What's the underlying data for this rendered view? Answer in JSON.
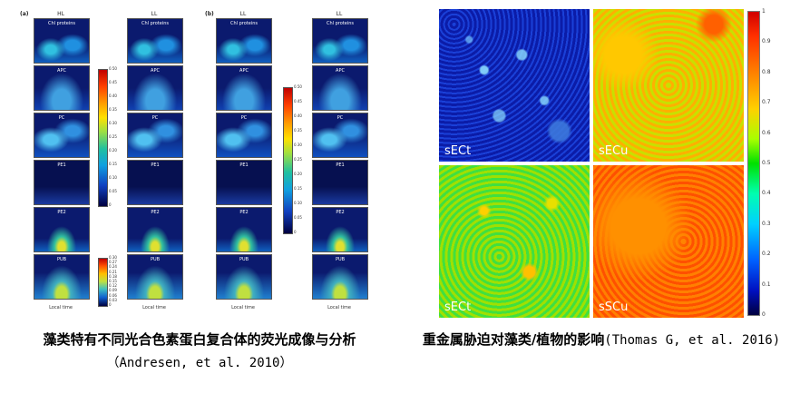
{
  "left_figure": {
    "panel_a_letter": "(a)",
    "panel_b_letter": "(b)",
    "column_titles": [
      "HL",
      "LL",
      "LL",
      "LL"
    ],
    "row_labels": [
      "Chl proteins",
      "APC",
      "PC",
      "PE1",
      "PE2",
      "PUB"
    ],
    "x_axis_label": "Local time",
    "colorbar1_ticks": [
      "0.50",
      "0.45",
      "0.40",
      "0.35",
      "0.30",
      "0.25",
      "0.20",
      "0.15",
      "0.10",
      "0.05",
      "0"
    ],
    "colorbar2_ticks": [
      "0.30",
      "0.27",
      "0.24",
      "0.21",
      "0.18",
      "0.15",
      "0.12",
      "0.09",
      "0.06",
      "0.03",
      "0"
    ],
    "colorbar3_ticks": [
      "0.50",
      "0.45",
      "0.40",
      "0.35",
      "0.30",
      "0.25",
      "0.20",
      "0.15",
      "0.10",
      "0.05",
      "0"
    ]
  },
  "right_figure": {
    "quadrants": [
      "sECt",
      "sECu",
      "sECt",
      "sSCu"
    ],
    "colorbar_ticks": [
      "1",
      "0.9",
      "0.8",
      "0.7",
      "0.6",
      "0.5",
      "0.4",
      "0.3",
      "0.2",
      "0.1",
      "0"
    ]
  },
  "captions": {
    "left_bold": "藻类特有不同光合色素蛋白复合体的荧光成像与分析",
    "left_cite": "（Andresen, et al. 2010）",
    "right_bold": "重金属胁迫对藻类/植物的影响",
    "right_cite": "(Thomas G, et al. 2016)"
  }
}
